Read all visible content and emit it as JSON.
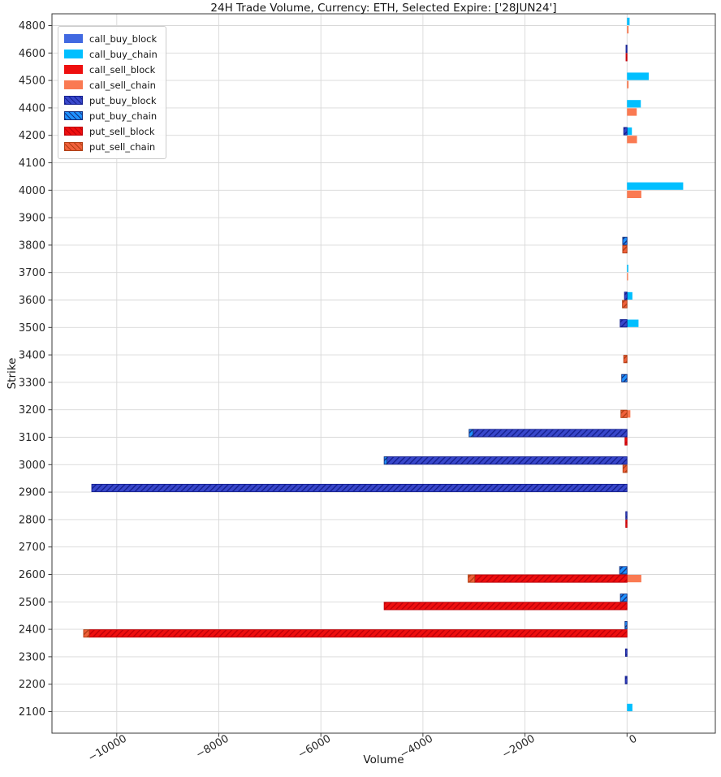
{
  "chart_data": {
    "type": "bar",
    "orientation": "horizontal",
    "title": "24H Trade Volume, Currency: ETH, Selected Expire: ['28JUN24']",
    "xlabel": "Volume",
    "ylabel": "Strike",
    "xlim": [
      -11270,
      1730
    ],
    "grid": true,
    "legend_position": "upper-left",
    "x_ticks": [
      {
        "value": -10000,
        "label": "−10000"
      },
      {
        "value": -8000,
        "label": "−8000"
      },
      {
        "value": -6000,
        "label": "−6000"
      },
      {
        "value": -4000,
        "label": "−4000"
      },
      {
        "value": -2000,
        "label": "−2000"
      },
      {
        "value": 0,
        "label": "0"
      }
    ],
    "strikes": [
      4800,
      4600,
      4500,
      4400,
      4200,
      4100,
      4000,
      3900,
      3800,
      3700,
      3600,
      3500,
      3400,
      3300,
      3200,
      3100,
      3000,
      2900,
      2800,
      2700,
      2600,
      2500,
      2400,
      2300,
      2200,
      2100
    ],
    "series": [
      {
        "key": "call_buy_block",
        "label": "call_buy_block",
        "color": "#4169E1",
        "hatch": false,
        "hatch_color": null
      },
      {
        "key": "call_buy_chain",
        "label": "call_buy_chain",
        "color": "#00BFFF",
        "hatch": false,
        "hatch_color": null
      },
      {
        "key": "call_sell_block",
        "label": "call_sell_block",
        "color": "#EE0F0F",
        "hatch": false,
        "hatch_color": null
      },
      {
        "key": "call_sell_chain",
        "label": "call_sell_chain",
        "color": "#FA7A52",
        "hatch": false,
        "hatch_color": null
      },
      {
        "key": "put_buy_block",
        "label": "put_buy_block",
        "color": "#3847CB",
        "hatch": true,
        "hatch_color": "#15208F"
      },
      {
        "key": "put_buy_chain",
        "label": "put_buy_chain",
        "color": "#1E90FF",
        "hatch": true,
        "hatch_color": "#14307E"
      },
      {
        "key": "put_sell_block",
        "label": "put_sell_block",
        "color": "#EE0F0F",
        "hatch": true,
        "hatch_color": "#C00008"
      },
      {
        "key": "put_sell_chain",
        "label": "put_sell_chain",
        "color": "#F0603A",
        "hatch": true,
        "hatch_color": "#B03E14"
      }
    ],
    "stack_order": {
      "buy_pos": [
        "call_buy_block",
        "call_buy_chain"
      ],
      "buy_neg": [
        "put_buy_block",
        "put_buy_chain"
      ],
      "sell_pos": [
        "call_sell_block",
        "call_sell_chain"
      ],
      "sell_neg": [
        "put_sell_block",
        "put_sell_chain"
      ]
    },
    "rows": [
      {
        "strike": 4800,
        "call_buy_chain": 50,
        "call_sell_chain": 30
      },
      {
        "strike": 4600,
        "put_buy_block": -20,
        "put_sell_block": -20
      },
      {
        "strike": 4500,
        "call_buy_chain": 425,
        "call_sell_chain": 30
      },
      {
        "strike": 4400,
        "call_buy_chain": 270,
        "call_sell_chain": 190
      },
      {
        "strike": 4200,
        "call_buy_chain": 95,
        "put_buy_block": -65,
        "call_sell_chain": 195
      },
      {
        "strike": 4100
      },
      {
        "strike": 4000,
        "call_buy_chain": 1100,
        "call_sell_chain": 280
      },
      {
        "strike": 3900
      },
      {
        "strike": 3800,
        "put_buy_chain": -85,
        "put_sell_chain": -85
      },
      {
        "strike": 3700,
        "call_buy_chain": 25,
        "call_sell_chain": 20
      },
      {
        "strike": 3600,
        "call_buy_chain": 105,
        "put_buy_block": -50,
        "put_sell_chain": -90
      },
      {
        "strike": 3500,
        "call_buy_chain": 225,
        "put_buy_block": -135
      },
      {
        "strike": 3400,
        "put_sell_chain": -65
      },
      {
        "strike": 3300,
        "put_buy_chain": -105
      },
      {
        "strike": 3200,
        "call_sell_chain": 65,
        "put_sell_chain": -120
      },
      {
        "strike": 3100,
        "put_buy_block": -3015,
        "put_buy_chain": -80,
        "put_sell_block": -40
      },
      {
        "strike": 3000,
        "put_buy_block": -4705,
        "put_buy_chain": -55,
        "put_sell_chain": -80
      },
      {
        "strike": 2900,
        "put_buy_block": -10490
      },
      {
        "strike": 2800,
        "put_buy_block": -25,
        "put_sell_block": -25
      },
      {
        "strike": 2700
      },
      {
        "strike": 2600,
        "put_buy_chain": -145,
        "call_sell_chain": 280,
        "put_sell_block": -2985,
        "put_sell_chain": -130
      },
      {
        "strike": 2500,
        "put_buy_chain": -130,
        "put_sell_block": -4760
      },
      {
        "strike": 2400,
        "put_buy_chain": -40,
        "put_sell_block": -10540,
        "put_sell_chain": -110
      },
      {
        "strike": 2300,
        "put_buy_block": -30
      },
      {
        "strike": 2200,
        "put_buy_block": -35
      },
      {
        "strike": 2100,
        "call_buy_chain": 105
      }
    ]
  }
}
